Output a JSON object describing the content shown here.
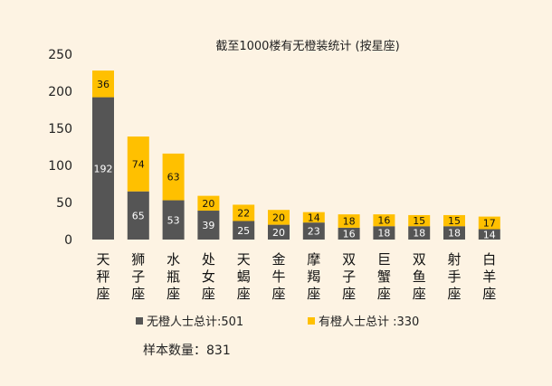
{
  "chart_data": {
    "type": "bar",
    "stacked": true,
    "title": "截至1000楼有无橙装统计 (按星座)",
    "categories": [
      "天秤座",
      "狮子座",
      "水瓶座",
      "处女座",
      "天蝎座",
      "金牛座",
      "摩羯座",
      "双子座",
      "巨蟹座",
      "双鱼座",
      "射手座",
      "白羊座"
    ],
    "series": [
      {
        "name": "无橙人士总计:501",
        "color": "#555555",
        "label_color": "#ffffff",
        "values": [
          192,
          65,
          53,
          39,
          25,
          20,
          23,
          16,
          18,
          18,
          18,
          14
        ]
      },
      {
        "name": "有橙人士总计 :330",
        "color": "#ffc000",
        "label_color": "#111111",
        "values": [
          36,
          74,
          63,
          20,
          22,
          20,
          14,
          18,
          16,
          15,
          15,
          17
        ]
      }
    ],
    "ylim": [
      0,
      250
    ],
    "yticks": [
      "0",
      "50",
      "100",
      "150",
      "200",
      "250"
    ],
    "legend_position": "bottom",
    "grid": false
  },
  "footer": {
    "sample_text": "样本数量：831"
  }
}
